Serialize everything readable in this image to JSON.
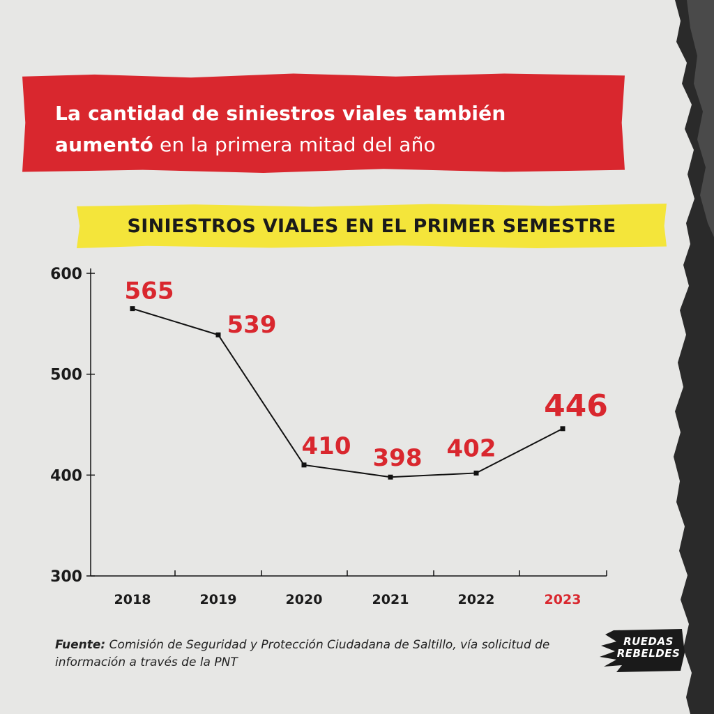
{
  "headline": {
    "bold_part_1": "La cantidad de siniestros viales también",
    "bold_part_2": "aumentó",
    "regular_part": " en la primera mitad del año"
  },
  "chart_data": {
    "type": "line",
    "title": "SINIESTROS VIALES EN EL PRIMER SEMESTRE",
    "categories": [
      "2018",
      "2019",
      "2020",
      "2021",
      "2022",
      "2023"
    ],
    "values": [
      565,
      539,
      410,
      398,
      402,
      446
    ],
    "data_labels": [
      "565",
      "539",
      "410",
      "398",
      "402",
      "446"
    ],
    "highlight_category": "2023",
    "ylim": [
      300,
      600
    ],
    "yticks": [
      "600",
      "500",
      "400",
      "300"
    ],
    "ytick_values": [
      600,
      500,
      400,
      300
    ],
    "xlabel": "",
    "ylabel": "",
    "colors": {
      "line": "#111111",
      "label": "#d9272e",
      "highlight_tick": "#d9272e",
      "tick": "#1a1a1a"
    }
  },
  "source": {
    "label": "Fuente:",
    "text": " Comisión de Seguridad y Protección Ciudadana de Saltillo, vía solicitud de información a través de la PNT"
  },
  "logo": {
    "line1": "RUEDAS",
    "line2": "REBELDES"
  }
}
